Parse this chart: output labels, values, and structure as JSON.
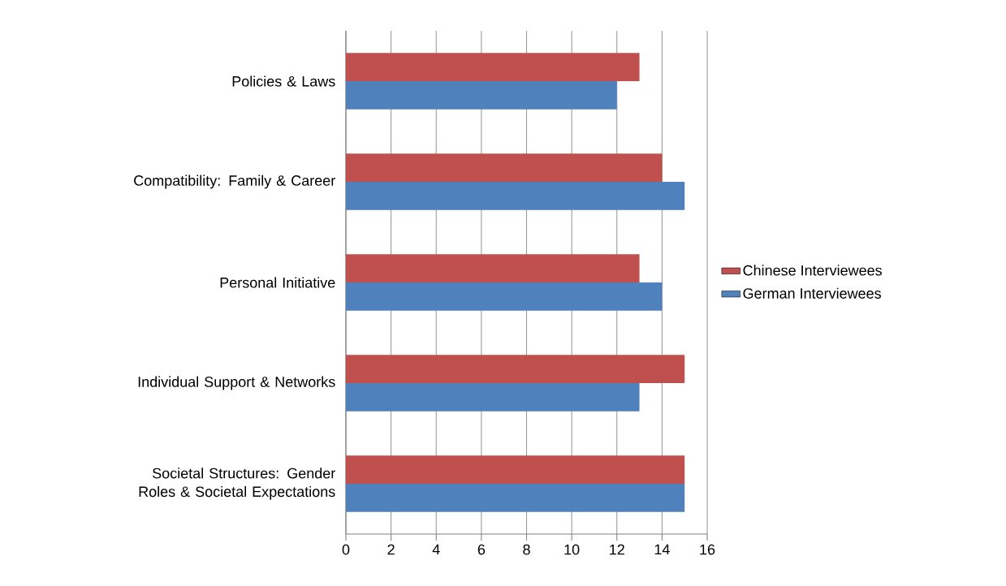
{
  "chart_data": {
    "type": "bar",
    "orientation": "horizontal",
    "categories": [
      "Policies & Laws",
      "Compatibility: Family & Career",
      "Personal Initiative",
      "Individual Support & Networks",
      "Societal Structures: Gender Roles & Societal Expectations"
    ],
    "series": [
      {
        "name": "Chinese Interviewees",
        "color": "#c0504d",
        "values": [
          13,
          14,
          13,
          15,
          15
        ]
      },
      {
        "name": "German Interviewees",
        "color": "#4f81bd",
        "values": [
          12,
          15,
          14,
          13,
          15
        ]
      }
    ],
    "xlim": [
      0,
      16
    ],
    "xticks": [
      0,
      2,
      4,
      6,
      8,
      10,
      12,
      14,
      16
    ],
    "grid": "x",
    "legend": "right"
  }
}
